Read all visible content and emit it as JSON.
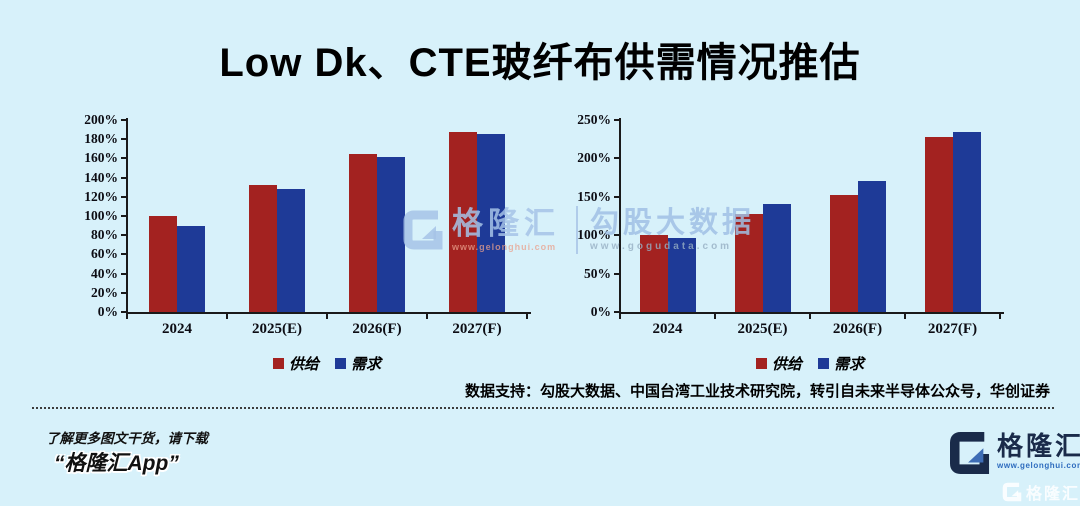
{
  "title": "Low Dk、CTE玻纤布供需情况推估",
  "chart_data": [
    {
      "type": "bar",
      "categories": [
        "2024",
        "2025(E)",
        "2026(F)",
        "2027(F)"
      ],
      "series": [
        {
          "name": "供给",
          "color": "#a32220",
          "values": [
            100,
            132,
            165,
            188
          ]
        },
        {
          "name": "需求",
          "color": "#1e3a97",
          "values": [
            90,
            128,
            161,
            185
          ]
        }
      ],
      "ylim": [
        0,
        200
      ],
      "yticks": [
        "0%",
        "20%",
        "40%",
        "60%",
        "80%",
        "100%",
        "120%",
        "140%",
        "160%",
        "180%",
        "200%"
      ],
      "xlabel": "",
      "ylabel": "",
      "grid": false,
      "legend_position": "bottom"
    },
    {
      "type": "bar",
      "categories": [
        "2024",
        "2025(E)",
        "2026(F)",
        "2027(F)"
      ],
      "series": [
        {
          "name": "供给",
          "color": "#a32220",
          "values": [
            100,
            127,
            152,
            228
          ]
        },
        {
          "name": "需求",
          "color": "#1e3a97",
          "values": [
            96,
            141,
            170,
            235
          ]
        }
      ],
      "ylim": [
        0,
        250
      ],
      "yticks": [
        "0%",
        "50%",
        "100%",
        "150%",
        "200%",
        "250%"
      ],
      "xlabel": "",
      "ylabel": "",
      "grid": false,
      "legend_position": "bottom"
    }
  ],
  "source_note": "数据支持：勾股大数据、中国台湾工业技术研究院，转引自未来半导体公众号，华创证券",
  "footer": {
    "promo_line": "了解更多图文干货，请下载",
    "promo_app": "“格隆汇App”",
    "brand": "格隆汇",
    "brand_url": "www.gelonghui.com"
  },
  "watermark": {
    "brand": "格隆汇",
    "brand_url": "www.gelonghui.com",
    "data_brand": "勾股大数据",
    "data_url": "www.gogudata.com"
  },
  "corner_watermark": {
    "brand": "格隆汇"
  },
  "colors": {
    "background": "#d7f1fa",
    "supply_red": "#a32220",
    "demand_blue": "#1e3a97",
    "logo_navy": "#1a2b4a",
    "logo_link_blue": "#2e6cbe"
  }
}
